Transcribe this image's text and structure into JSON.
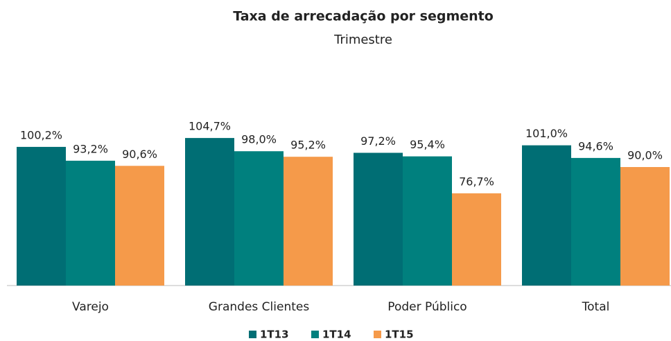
{
  "chart_data": {
    "type": "bar",
    "title": "Taxa de arrecadação por segmento",
    "subtitle": "Trimestre",
    "categories": [
      "Varejo",
      "Grandes Clientes",
      "Poder Público",
      "Total"
    ],
    "series": [
      {
        "name": "1T13",
        "color": "#006e74",
        "values": [
          100.2,
          104.7,
          97.2,
          101.0
        ],
        "value_labels": [
          "100,2%",
          "104,7%",
          "97,2%",
          "101,0%"
        ]
      },
      {
        "name": "1T14",
        "color": "#00807e",
        "values": [
          93.2,
          98.0,
          95.4,
          94.6
        ],
        "value_labels": [
          "93,2%",
          "98,0%",
          "95,4%",
          "94,6%"
        ]
      },
      {
        "name": "1T15",
        "color": "#f59a4a",
        "values": [
          90.6,
          95.2,
          76.7,
          90.0
        ],
        "value_labels": [
          "90,6%",
          "95,2%",
          "76,7%",
          "90,0%"
        ]
      }
    ],
    "ylim": [
      30,
      110
    ],
    "legend": "bottom"
  }
}
